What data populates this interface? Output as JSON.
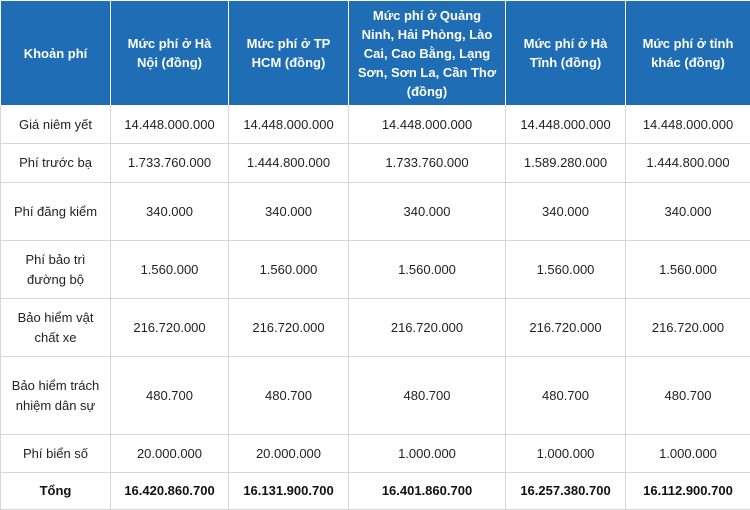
{
  "table": {
    "headers": [
      "Khoản phí",
      "Mức phí ở Hà Nội (đồng)",
      "Mức phí ở TP HCM (đồng)",
      "Mức phí ở Quảng Ninh, Hải Phòng, Lào Cai, Cao Bằng, Lạng Sơn, Sơn La, Cần Thơ (đồng)",
      "Mức phí ở Hà Tĩnh (đồng)",
      "Mức phí ở tỉnh khác (đồng)"
    ],
    "rows": [
      [
        "Giá niêm yết",
        "14.448.000.000",
        "14.448.000.000",
        "14.448.000.000",
        "14.448.000.000",
        "14.448.000.000"
      ],
      [
        "Phí trước bạ",
        "1.733.760.000",
        "1.444.800.000",
        "1.733.760.000",
        "1.589.280.000",
        "1.444.800.000"
      ],
      [
        "Phí đăng kiểm",
        "340.000",
        "340.000",
        "340.000",
        "340.000",
        "340.000"
      ],
      [
        "Phí bảo trì đường bộ",
        "1.560.000",
        "1.560.000",
        "1.560.000",
        "1.560.000",
        "1.560.000"
      ],
      [
        "Bảo hiểm vật chất xe",
        "216.720.000",
        "216.720.000",
        "216.720.000",
        "216.720.000",
        "216.720.000"
      ],
      [
        "Bảo hiểm trách nhiệm dân sự",
        "480.700",
        "480.700",
        "480.700",
        "480.700",
        "480.700"
      ],
      [
        "Phí biển số",
        "20.000.000",
        "20.000.000",
        "1.000.000",
        "1.000.000",
        "1.000.000"
      ],
      [
        "Tổng",
        "16.420.860.700",
        "16.131.900.700",
        "16.401.860.700",
        "16.257.380.700",
        "16.112.900.700"
      ]
    ]
  },
  "colors": {
    "header_bg": "#1f6db5",
    "header_text": "#ffffff",
    "border": "#d6d6d6"
  }
}
